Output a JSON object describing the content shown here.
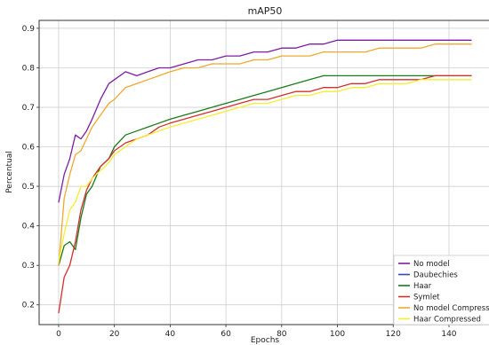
{
  "chart_data": {
    "type": "line",
    "title": "mAP50",
    "xlabel": "Epochs",
    "ylabel": "Percentual",
    "xlim": [
      -7,
      155
    ],
    "ylim": [
      0.15,
      0.92
    ],
    "xticks": [
      0,
      20,
      40,
      60,
      80,
      100,
      120,
      140
    ],
    "yticks": [
      0.2,
      0.3,
      0.4,
      0.5,
      0.6,
      0.7,
      0.8,
      0.9
    ],
    "grid": true,
    "legend_position": "bottom-right",
    "series": [
      {
        "name": "No model",
        "color": "#7b1fa2",
        "x": [
          0,
          2,
          4,
          6,
          8,
          10,
          12,
          15,
          18,
          20,
          24,
          28,
          32,
          36,
          40,
          45,
          50,
          55,
          60,
          65,
          70,
          75,
          80,
          85,
          90,
          95,
          100,
          105,
          110,
          115,
          120,
          125,
          130,
          135,
          140,
          145,
          148
        ],
        "y": [
          0.46,
          0.53,
          0.57,
          0.63,
          0.62,
          0.64,
          0.67,
          0.72,
          0.76,
          0.77,
          0.79,
          0.78,
          0.79,
          0.8,
          0.8,
          0.81,
          0.82,
          0.82,
          0.83,
          0.83,
          0.84,
          0.84,
          0.85,
          0.85,
          0.86,
          0.86,
          0.87,
          0.87,
          0.87,
          0.87,
          0.87,
          0.87,
          0.87,
          0.87,
          0.87,
          0.87,
          0.87
        ]
      },
      {
        "name": "Daubechies",
        "color": "#3949ab",
        "x": [],
        "y": []
      },
      {
        "name": "Haar",
        "color": "#1b7a1b",
        "x": [
          0,
          2,
          4,
          6,
          8,
          10,
          12,
          15,
          18,
          20,
          24,
          28,
          32,
          36,
          40,
          45,
          50,
          55,
          60,
          65,
          70,
          75,
          80,
          85,
          90,
          95,
          100,
          105,
          110,
          115,
          120,
          125,
          130,
          135,
          140,
          145,
          148
        ],
        "y": [
          0.3,
          0.35,
          0.36,
          0.34,
          0.42,
          0.48,
          0.5,
          0.55,
          0.57,
          0.6,
          0.63,
          0.64,
          0.65,
          0.66,
          0.67,
          0.68,
          0.69,
          0.7,
          0.71,
          0.72,
          0.73,
          0.74,
          0.75,
          0.76,
          0.77,
          0.78,
          0.78,
          0.78,
          0.78,
          0.78,
          0.78,
          0.78,
          0.78,
          0.78,
          0.78,
          0.78,
          0.78
        ]
      },
      {
        "name": "Symlet",
        "color": "#d32f2f",
        "x": [
          0,
          2,
          4,
          6,
          8,
          10,
          12,
          15,
          18,
          20,
          24,
          28,
          32,
          36,
          40,
          45,
          50,
          55,
          60,
          65,
          70,
          75,
          80,
          85,
          90,
          95,
          100,
          105,
          110,
          115,
          120,
          125,
          130,
          135,
          140,
          145,
          148
        ],
        "y": [
          0.18,
          0.27,
          0.3,
          0.36,
          0.44,
          0.49,
          0.52,
          0.55,
          0.57,
          0.59,
          0.61,
          0.62,
          0.63,
          0.65,
          0.66,
          0.67,
          0.68,
          0.69,
          0.7,
          0.71,
          0.72,
          0.72,
          0.73,
          0.74,
          0.74,
          0.75,
          0.75,
          0.76,
          0.76,
          0.77,
          0.77,
          0.77,
          0.77,
          0.78,
          0.78,
          0.78,
          0.78
        ]
      },
      {
        "name": "No model Compressed",
        "color": "#f0a830",
        "x": [
          0,
          2,
          4,
          6,
          8,
          10,
          12,
          15,
          18,
          20,
          24,
          28,
          32,
          36,
          40,
          45,
          50,
          55,
          60,
          65,
          70,
          75,
          80,
          85,
          90,
          95,
          100,
          105,
          110,
          115,
          120,
          125,
          130,
          135,
          140,
          145,
          148
        ],
        "y": [
          0.3,
          0.47,
          0.53,
          0.58,
          0.59,
          0.62,
          0.65,
          0.68,
          0.71,
          0.72,
          0.75,
          0.76,
          0.77,
          0.78,
          0.79,
          0.8,
          0.8,
          0.81,
          0.81,
          0.81,
          0.82,
          0.82,
          0.83,
          0.83,
          0.83,
          0.84,
          0.84,
          0.84,
          0.84,
          0.85,
          0.85,
          0.85,
          0.85,
          0.86,
          0.86,
          0.86,
          0.86
        ]
      },
      {
        "name": "Haar Compressed",
        "color": "#f5ee30",
        "x": [
          0,
          2,
          4,
          6,
          8,
          10,
          12,
          15,
          18,
          20,
          24,
          28,
          32,
          36,
          40,
          45,
          50,
          55,
          60,
          65,
          70,
          75,
          80,
          85,
          90,
          95,
          100,
          105,
          110,
          115,
          120,
          125,
          130,
          135,
          140,
          145,
          148
        ],
        "y": [
          0.31,
          0.38,
          0.44,
          0.46,
          0.5,
          0.5,
          0.52,
          0.54,
          0.56,
          0.58,
          0.6,
          0.62,
          0.63,
          0.64,
          0.65,
          0.66,
          0.67,
          0.68,
          0.69,
          0.7,
          0.71,
          0.71,
          0.72,
          0.73,
          0.73,
          0.74,
          0.74,
          0.75,
          0.75,
          0.76,
          0.76,
          0.76,
          0.77,
          0.77,
          0.77,
          0.77,
          0.77
        ]
      }
    ]
  }
}
